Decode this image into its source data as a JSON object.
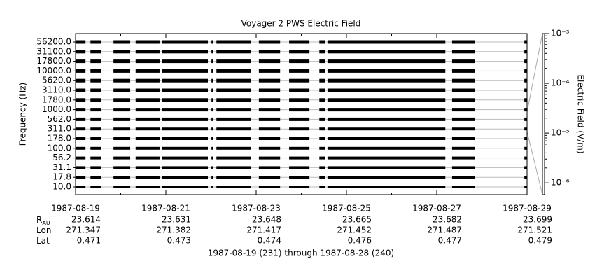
{
  "chart_data": {
    "type": "spectrogram",
    "title": "Voyager 2 PWS Electric Field",
    "ylabel": "Frequency (Hz)",
    "y2label": "Electric Field (V/m)",
    "xlabel": "1987-08-19 (231) through 1987-08-28 (240)",
    "categories": [
      "56200.0",
      "31100.0",
      "17800.0",
      "10000.0",
      "5620.0",
      "3110.0",
      "1780.0",
      "1000.0",
      "562.0",
      "311.0",
      "178.0",
      "100.0",
      "56.2",
      "31.1",
      "17.8",
      "10.0"
    ],
    "xlim": [
      0,
      10
    ],
    "xticks": [
      {
        "value": 0,
        "label": "1987-08-19"
      },
      {
        "value": 2,
        "label": "1987-08-21"
      },
      {
        "value": 4,
        "label": "1987-08-23"
      },
      {
        "value": 6,
        "label": "1987-08-25"
      },
      {
        "value": 8,
        "label": "1987-08-27"
      },
      {
        "value": 10,
        "label": "1987-08-29"
      }
    ],
    "y2lim": [
      5.8e-07,
      0.001
    ],
    "y2log": true,
    "y2ticks": [
      {
        "value": 0.001,
        "label": "10⁻³"
      },
      {
        "value": 0.0001,
        "label": "10⁻⁴"
      },
      {
        "value": 1e-05,
        "label": "10⁻⁵"
      },
      {
        "value": 1e-06,
        "label": "10⁻⁶"
      }
    ],
    "segments": [
      [
        0,
        0.22
      ],
      [
        0.33,
        0.56
      ],
      [
        0.84,
        1.21
      ],
      [
        1.33,
        1.86
      ],
      [
        1.91,
        2.93
      ],
      [
        3.01,
        3.04
      ],
      [
        3.12,
        3.88
      ],
      [
        4.06,
        4.53
      ],
      [
        4.73,
        5.18
      ],
      [
        5.4,
        5.53
      ],
      [
        5.58,
        8.19
      ],
      [
        8.34,
        8.85
      ],
      [
        9.94,
        10
      ]
    ],
    "color": "#000000",
    "ephemeris": [
      {
        "label": "R",
        "sub": "AU",
        "values": [
          23.614,
          23.631,
          23.648,
          23.665,
          23.682,
          23.699
        ]
      },
      {
        "label": "Lon",
        "values": [
          271.347,
          271.382,
          271.417,
          271.452,
          271.487,
          271.521
        ]
      },
      {
        "label": "Lat",
        "values": [
          0.471,
          0.473,
          0.474,
          0.476,
          0.477,
          0.479
        ]
      }
    ]
  }
}
